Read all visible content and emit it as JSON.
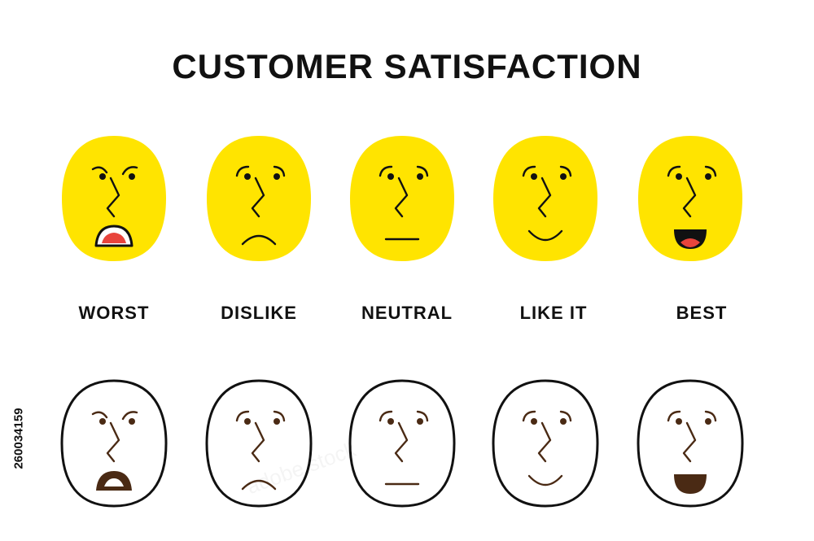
{
  "title": "CUSTOMER SATISFACTION",
  "ratings": [
    {
      "label": "WORST",
      "icon": "worst-face-icon",
      "mouth": "open-frown"
    },
    {
      "label": "DISLIKE",
      "icon": "dislike-face-icon",
      "mouth": "frown"
    },
    {
      "label": "NEUTRAL",
      "icon": "neutral-face-icon",
      "mouth": "flat"
    },
    {
      "label": "LIKE IT",
      "icon": "like-face-icon",
      "mouth": "smile"
    },
    {
      "label": "BEST",
      "icon": "best-face-icon",
      "mouth": "open-smile"
    }
  ],
  "stock_id": "260034159",
  "watermark": "adobe stock",
  "colors": {
    "face_fill": "#FFE400",
    "outline_stroke": "#111111",
    "feature_dark": "#111111",
    "feature_brown": "#4A2A14",
    "mouth_inner": "#E8443C",
    "teeth": "#FFFFFF"
  }
}
